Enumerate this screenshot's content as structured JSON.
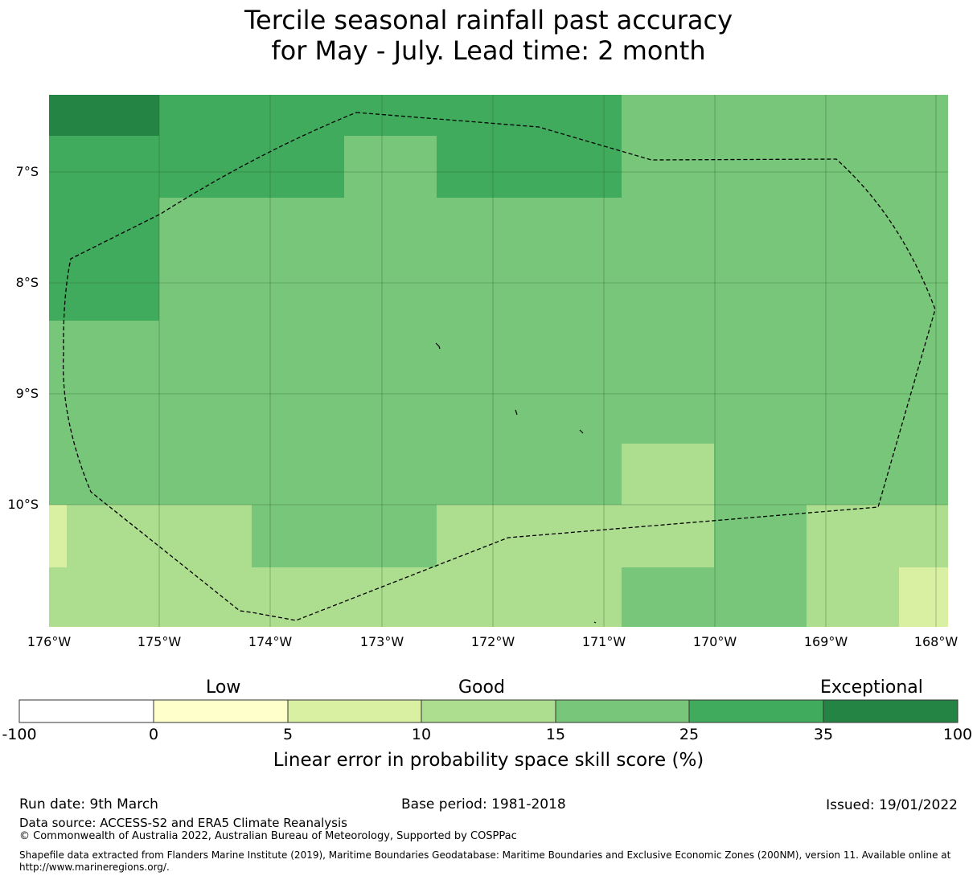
{
  "title": {
    "line1": "Tercile seasonal rainfall past accuracy",
    "line2": "for May - July. Lead time: 2 month"
  },
  "map": {
    "lat_labels": [
      "7°S",
      "8°S",
      "9°S",
      "10°S"
    ],
    "lon_labels": [
      "176°W",
      "175°W",
      "174°W",
      "173°W",
      "172°W",
      "171°W",
      "170°W",
      "169°W",
      "168°W"
    ],
    "colors": {
      "c0_5": "#ffffcc",
      "c5_10": "#d9f0a3",
      "c10_15": "#addd8e",
      "c15_25": "#78c679",
      "c25_35": "#41ab5d",
      "c35_100": "#238443",
      "boundary": "#000000"
    }
  },
  "colorbar": {
    "categories": [
      "Low",
      "Good",
      "Exceptional"
    ],
    "ticks": [
      "-100",
      "0",
      "5",
      "10",
      "15",
      "25",
      "35",
      "100"
    ],
    "colors": [
      "#ffffff",
      "#ffffcc",
      "#d9f0a3",
      "#addd8e",
      "#78c679",
      "#41ab5d",
      "#238443"
    ],
    "title": "Linear error in probability space skill score (%)"
  },
  "footer": {
    "run_date": "Run date: 9th March",
    "base_period": "Base period: 1981-2018",
    "issued": "Issued: 19/01/2022",
    "data_source": "Data source: ACCESS-S2 and ERA5 Climate Reanalysis",
    "copyright": "© Commonwealth of Australia 2022, Australian Bureau of Meteorology, Supported by COSPPac",
    "shapefile_line1": "Shapefile data extracted from Flanders Marine Institute (2019), Maritime Boundaries Geodatabase: Maritime Boundaries and Exclusive Economic Zones (200NM), version 11. Available online at",
    "shapefile_line2": "http://www.marineregions.org/."
  }
}
